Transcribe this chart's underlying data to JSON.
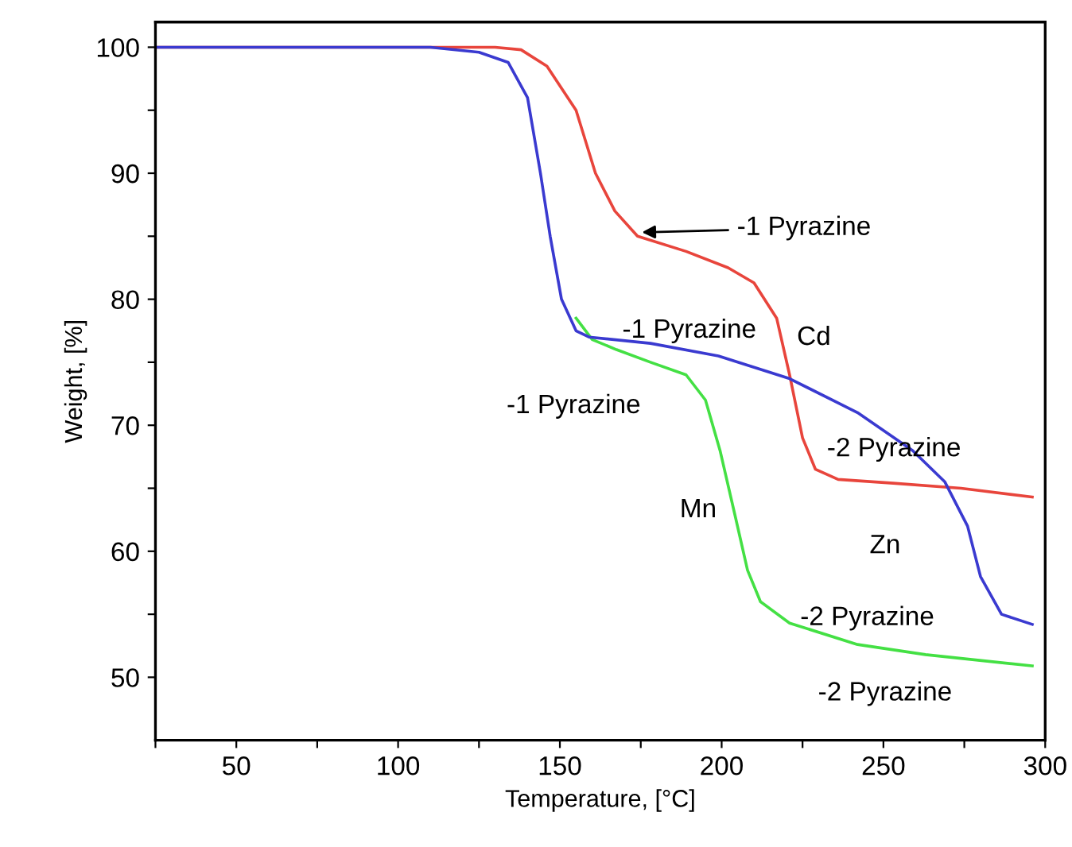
{
  "chart_data": {
    "type": "line",
    "xlabel": "Temperature, [°C]",
    "ylabel": "Weight, [%]",
    "xlim": [
      25,
      300
    ],
    "ylim": [
      45,
      102
    ],
    "xticks": [
      {
        "value": 25,
        "label": null
      },
      50,
      {
        "value": 75,
        "label": null
      },
      100,
      {
        "value": 125,
        "label": null
      },
      150,
      {
        "value": 175,
        "label": null
      },
      200,
      {
        "value": 225,
        "label": null
      },
      250,
      {
        "value": 275,
        "label": null
      },
      300
    ],
    "yticks": [
      50,
      {
        "value": 55,
        "label": null
      },
      60,
      {
        "value": 65,
        "label": null
      },
      70,
      {
        "value": 75,
        "label": null
      },
      80,
      {
        "value": 85,
        "label": null
      },
      90,
      {
        "value": 95,
        "label": null
      },
      100
    ],
    "grid": false,
    "marker": "none",
    "line_style": "solid",
    "series": [
      {
        "color": "#e8453c",
        "x": [
          25,
          130,
          138,
          146,
          155,
          161,
          167,
          174,
          189,
          202,
          210,
          217,
          221,
          225,
          229,
          236,
          253,
          274,
          296
        ],
        "values": [
          100,
          100,
          99.8,
          98.5,
          95,
          90,
          87,
          85,
          83.8,
          82.5,
          81.3,
          78.5,
          74,
          69,
          66.5,
          65.7,
          65.4,
          65,
          64.3
        ]
      },
      {
        "color": "#44e044",
        "x": [
          155,
          160,
          167.5,
          178,
          189,
          195,
          199.5,
          204,
          208,
          212,
          221,
          242,
          263,
          296
        ],
        "values": [
          78.5,
          76.8,
          76,
          75,
          74,
          72,
          68,
          63,
          58.5,
          56,
          54.3,
          52.6,
          51.8,
          50.9
        ]
      },
      {
        "color": "#3a3ad0",
        "x": [
          25,
          110,
          125,
          134,
          140,
          144,
          147,
          150.5,
          155,
          159,
          178,
          199,
          221,
          242,
          259,
          269,
          276,
          280,
          286.5,
          296
        ],
        "values": [
          100,
          100,
          99.6,
          98.8,
          96,
          90,
          85,
          80,
          77.5,
          77,
          76.5,
          75.5,
          73.7,
          71,
          68,
          65.5,
          62,
          58,
          55,
          54.2
        ]
      }
    ],
    "annotations": [
      {
        "text": "-1 Pyrazine",
        "x": 174,
        "y": 85.3
      },
      "-1 Pyrazine",
      "Cd",
      "-1 Pyrazine",
      "-2 Pyrazine",
      "Mn",
      "Zn",
      "-2 Pyrazine",
      "-2 Pyrazine"
    ]
  }
}
